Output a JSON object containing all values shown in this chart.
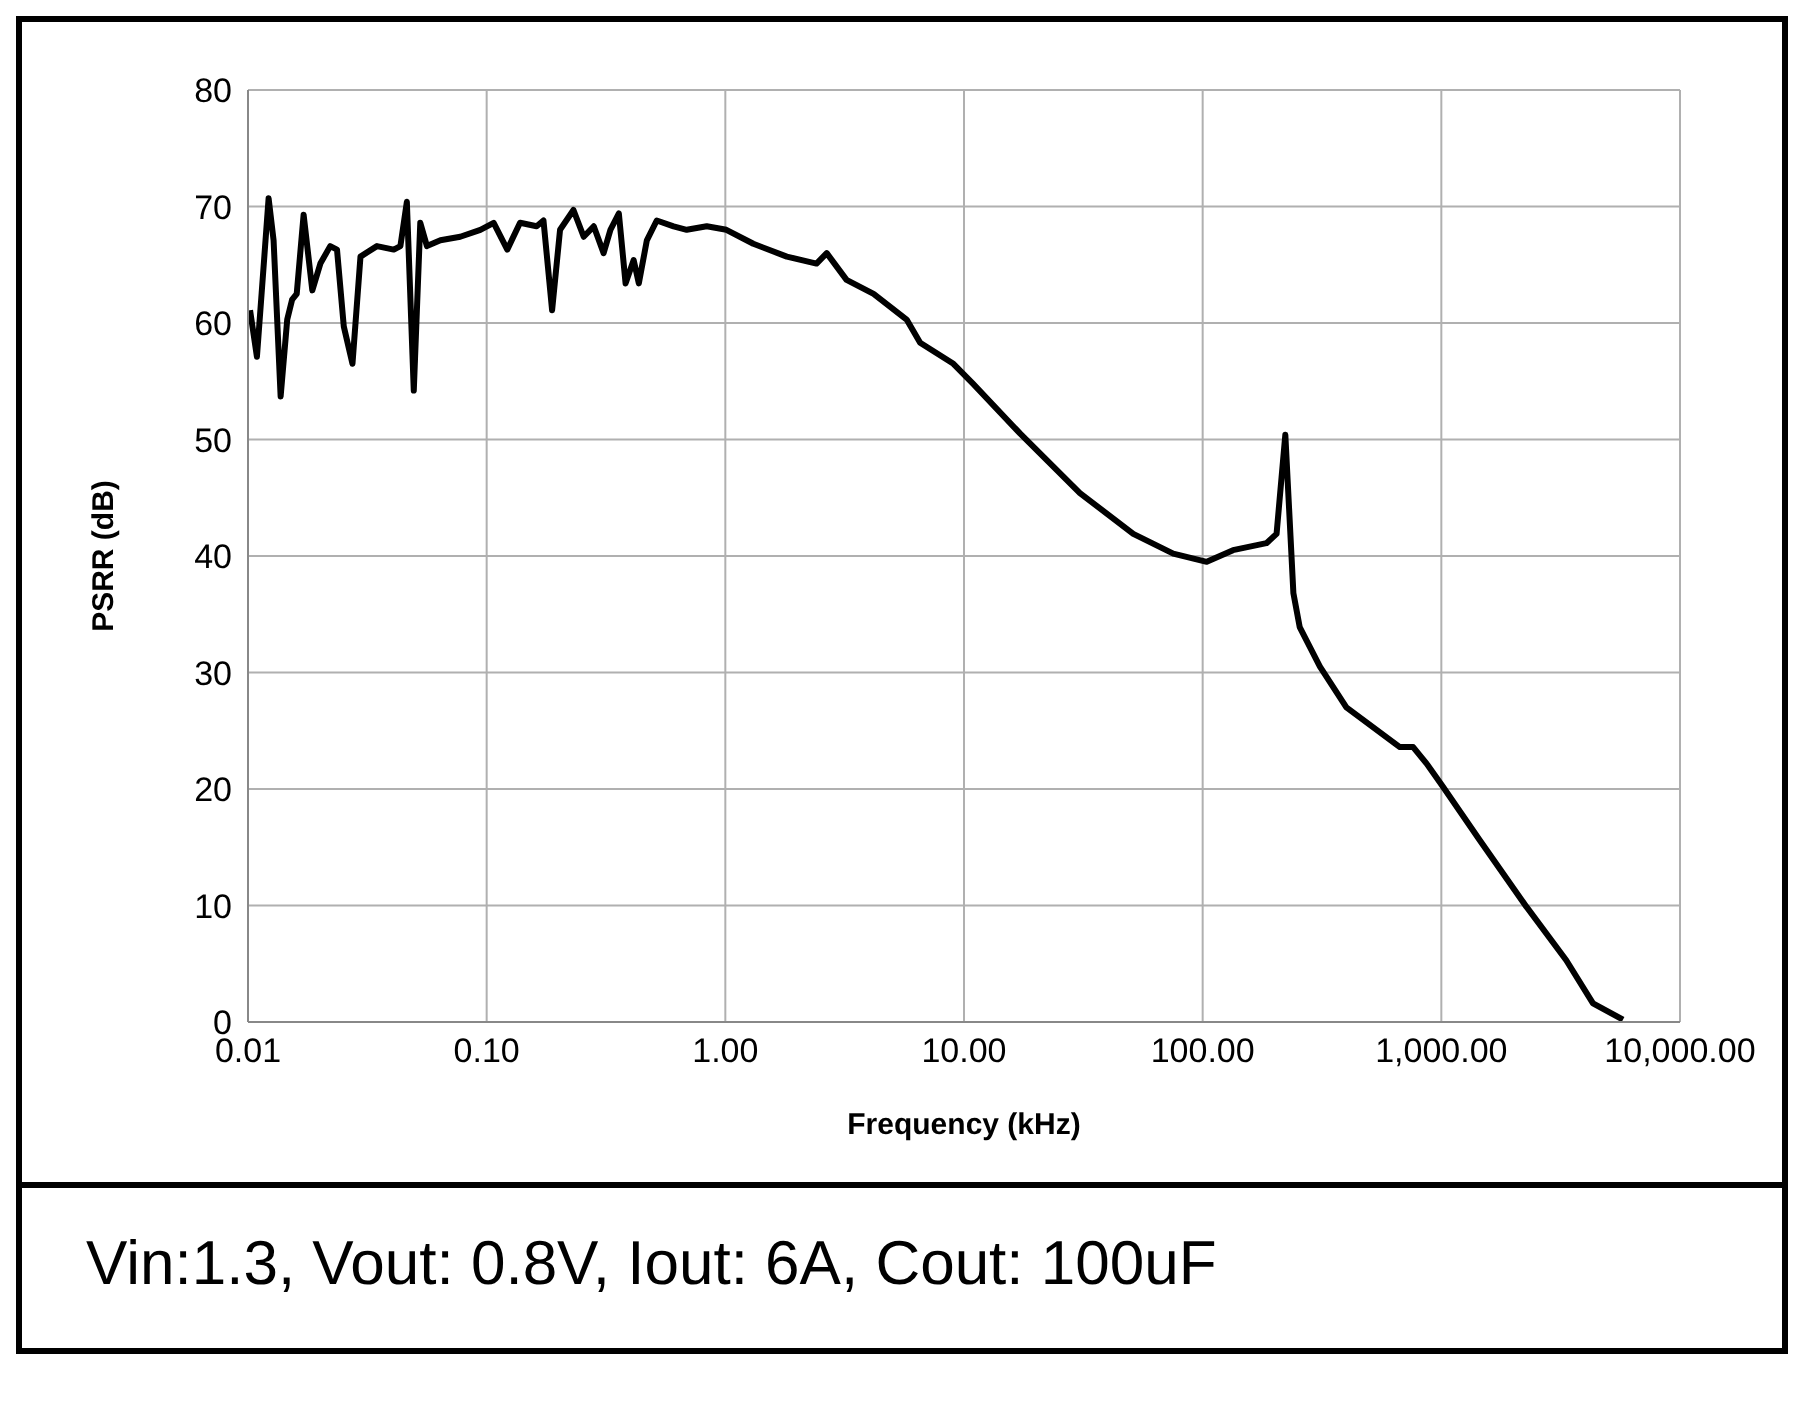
{
  "chart_data": {
    "type": "line",
    "xlabel": "Frequency (kHz)",
    "ylabel": "PSRR (dB)",
    "log": "x",
    "grid": true,
    "legend": false,
    "marker": "none",
    "line_style": "solid",
    "xlim": [
      0.01,
      10000
    ],
    "xticks": [
      {
        "value": 0.01,
        "label": "0.01"
      },
      {
        "value": 0.1,
        "label": "0.10"
      },
      {
        "value": 1,
        "label": "1.00"
      },
      {
        "value": 10,
        "label": "10.00"
      },
      {
        "value": 100,
        "label": "100.00"
      },
      {
        "value": 1000,
        "label": "1,000.00"
      },
      {
        "value": 10000,
        "label": "10,000.00"
      }
    ],
    "ylim": [
      0,
      80
    ],
    "yticks": [
      0,
      10,
      20,
      30,
      40,
      50,
      60,
      70,
      80
    ],
    "annotations": [
      "Vin:1.3, Vout: 0.8V, Iout: 6A, Cout: 100uF"
    ],
    "series": [
      {
        "color": "#000000",
        "x": [
          0.0102,
          0.0109,
          0.0114,
          0.0122,
          0.0128,
          0.0137,
          0.0146,
          0.0153,
          0.016,
          0.0171,
          0.0186,
          0.0201,
          0.0221,
          0.0236,
          0.0252,
          0.0274,
          0.0296,
          0.0347,
          0.0408,
          0.0435,
          0.0463,
          0.0495,
          0.0527,
          0.0562,
          0.064,
          0.0775,
          0.0941,
          0.107,
          0.122,
          0.138,
          0.162,
          0.173,
          0.188,
          0.203,
          0.231,
          0.255,
          0.281,
          0.309,
          0.33,
          0.358,
          0.382,
          0.413,
          0.434,
          0.469,
          0.516,
          0.607,
          0.689,
          0.836,
          1.01,
          1.31,
          1.81,
          2.41,
          2.66,
          3.22,
          4.18,
          5.75,
          6.55,
          9.03,
          10.9,
          17.2,
          30.6,
          51.2,
          75.3,
          104,
          134,
          185,
          204,
          222,
          240,
          255,
          310,
          400,
          670,
          762,
          866,
          1016,
          1449,
          2271,
          3337,
          4320,
          5770
        ],
        "values": [
          61.1,
          57.1,
          62.5,
          70.7,
          67.1,
          53.7,
          60.3,
          62.0,
          62.5,
          69.3,
          62.8,
          65.1,
          66.6,
          66.3,
          59.7,
          56.5,
          65.7,
          66.6,
          66.3,
          66.6,
          70.4,
          54.2,
          68.6,
          66.6,
          67.1,
          67.4,
          68.0,
          68.6,
          66.3,
          68.6,
          68.3,
          68.8,
          61.1,
          68.0,
          69.7,
          67.4,
          68.3,
          66.0,
          68.0,
          69.4,
          63.4,
          65.4,
          63.4,
          67.1,
          68.8,
          68.3,
          68.0,
          68.3,
          68.0,
          66.8,
          65.7,
          65.1,
          66.0,
          63.7,
          62.5,
          60.3,
          58.3,
          56.5,
          54.8,
          50.5,
          45.4,
          41.9,
          40.2,
          39.5,
          40.5,
          41.1,
          41.9,
          50.4,
          36.8,
          33.9,
          30.5,
          27.0,
          23.6,
          23.6,
          22.2,
          20.2,
          15.6,
          9.9,
          5.3,
          1.6,
          0.2
        ]
      }
    ]
  }
}
